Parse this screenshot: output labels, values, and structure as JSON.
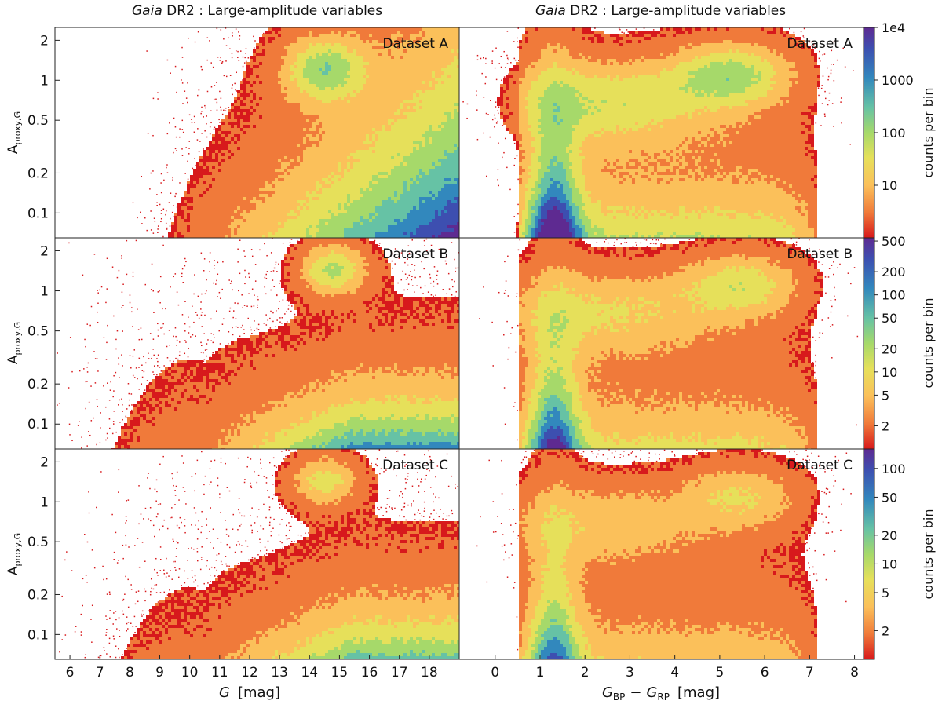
{
  "titles": {
    "left": {
      "gaia": "Gaia",
      "rest": "DR2 :  Large-amplitude variables"
    },
    "right": {
      "gaia": "Gaia",
      "rest": "DR2 :  Large-amplitude variables"
    }
  },
  "axes": {
    "ylabel_main": "A",
    "ylabel_sub": "proxy,G",
    "xlabel_left_main": "G",
    "xlabel_left_unit": "[mag]",
    "xlabel_right_G1": "G",
    "xlabel_right_sub1": "BP",
    "xlabel_right_minus": "−",
    "xlabel_right_G2": "G",
    "xlabel_right_sub2": "RP",
    "xlabel_right_unit": "[mag]",
    "colorbar_label": "counts per bin"
  },
  "colors": {
    "palette": [
      "#d7191c",
      "#f07a3a",
      "#fbc05a",
      "#e6e05a",
      "#a6d96a",
      "#66c2a5",
      "#3288bd",
      "#3d4fb0",
      "#5e2a91"
    ]
  },
  "chart_data": [
    {
      "type": "heatmap",
      "panel": "left",
      "row": 0,
      "dataset_label": "Dataset A",
      "xlabel": "G  [mag]",
      "ylabel": "A_proxy,G",
      "xlim": [
        5.5,
        19.0
      ],
      "ylim": [
        0.065,
        2.5
      ],
      "yscale": "log",
      "xticks": [],
      "yticks": [
        0.1,
        0.2,
        0.5,
        1,
        2
      ],
      "yticklabels": [
        "0.1",
        "0.2",
        "0.5",
        "1",
        "2"
      ],
      "main_ridge": {
        "G_start": 8,
        "G_end": 19,
        "note": "density increases toward faint G and low amplitude"
      },
      "blob": {
        "G_center": 14.5,
        "amp_center": 0.6
      }
    },
    {
      "type": "heatmap",
      "panel": "right",
      "row": 0,
      "dataset_label": "Dataset A",
      "xlim": [
        -0.8,
        8.2
      ],
      "ylim": [
        0.065,
        2.5
      ],
      "yscale": "log",
      "xticks": [],
      "peak": {
        "color_center": 1.3,
        "amp_center": 0.07
      },
      "blob": {
        "color_center": 5.3,
        "amp_center": 0.6
      }
    },
    {
      "type": "heatmap",
      "panel": "left",
      "row": 1,
      "dataset_label": "Dataset B",
      "xlim": [
        5.5,
        19.0
      ],
      "ylim": [
        0.065,
        2.5
      ],
      "yscale": "log",
      "xticks": [],
      "yticks": [
        0.1,
        0.2,
        0.5,
        1,
        2
      ],
      "yticklabels": [
        "0.1",
        "0.2",
        "0.5",
        "1",
        "2"
      ],
      "blob": {
        "G_center": 14.8,
        "amp_center": 0.7
      }
    },
    {
      "type": "heatmap",
      "panel": "right",
      "row": 1,
      "dataset_label": "Dataset B",
      "xlim": [
        -0.8,
        8.2
      ],
      "ylim": [
        0.065,
        2.5
      ],
      "yscale": "log",
      "xticks": [],
      "peak": {
        "color_center": 1.3,
        "amp_center": 0.1
      },
      "blob": {
        "color_center": 5.5,
        "amp_center": 0.6
      }
    },
    {
      "type": "heatmap",
      "panel": "left",
      "row": 2,
      "dataset_label": "Dataset C",
      "xlabel": "G  [mag]",
      "xlim": [
        5.5,
        19.0
      ],
      "ylim": [
        0.065,
        2.5
      ],
      "yscale": "log",
      "xticks": [
        6,
        7,
        8,
        9,
        10,
        11,
        12,
        13,
        14,
        15,
        16,
        17,
        18
      ],
      "xticklabels": [
        "6",
        "7",
        "8",
        "9",
        "10",
        "11",
        "12",
        "13",
        "14",
        "15",
        "16",
        "17",
        "18"
      ],
      "yticks": [
        0.1,
        0.2,
        0.5,
        1,
        2
      ],
      "yticklabels": [
        "0.1",
        "0.2",
        "0.5",
        "1",
        "2"
      ],
      "blob": {
        "G_center": 14.5,
        "amp_center": 0.55
      }
    },
    {
      "type": "heatmap",
      "panel": "right",
      "row": 2,
      "dataset_label": "Dataset C",
      "xlabel": "G_BP − G_RP  [mag]",
      "xlim": [
        -0.8,
        8.2
      ],
      "ylim": [
        0.065,
        2.5
      ],
      "yscale": "log",
      "xticks": [
        0,
        1,
        2,
        3,
        4,
        5,
        6,
        7,
        8
      ],
      "xticklabels": [
        "0",
        "1",
        "2",
        "3",
        "4",
        "5",
        "6",
        "7",
        "8"
      ],
      "peak": {
        "color_center": 1.3,
        "amp_center": 0.1
      },
      "blob": {
        "color_center": 5.5,
        "amp_center": 0.5
      }
    }
  ],
  "colorbars": [
    {
      "row": 0,
      "label": "counts per bin",
      "scale": "log",
      "range": [
        1,
        10000
      ],
      "ticks": [
        10,
        100,
        1000,
        10000
      ],
      "ticklabels": [
        "10",
        "100",
        "1000",
        "1e4"
      ]
    },
    {
      "row": 1,
      "label": "counts per bin",
      "scale": "log",
      "range": [
        1,
        550
      ],
      "ticks": [
        2,
        5,
        10,
        20,
        50,
        100,
        200,
        500
      ],
      "ticklabels": [
        "2",
        "5",
        "10",
        "20",
        "50",
        "100",
        "200",
        "500"
      ]
    },
    {
      "row": 2,
      "label": "counts per bin",
      "scale": "log",
      "range": [
        1,
        160
      ],
      "ticks": [
        2,
        5,
        10,
        20,
        50,
        100
      ],
      "ticklabels": [
        "2",
        "5",
        "10",
        "20",
        "50",
        "100"
      ]
    }
  ]
}
